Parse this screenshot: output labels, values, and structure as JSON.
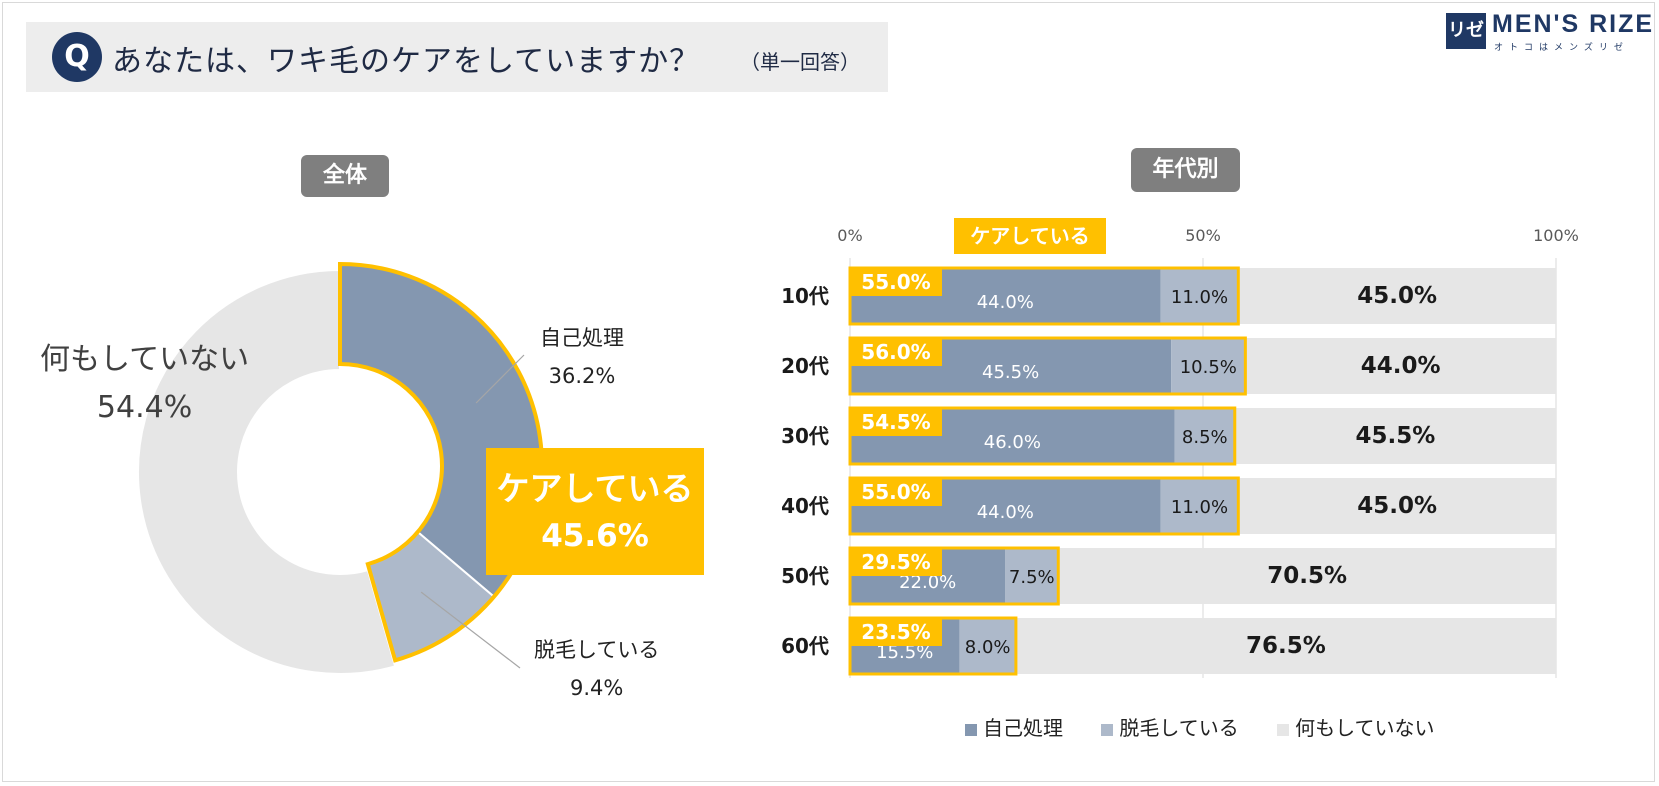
{
  "question": {
    "badge": "Q",
    "text": "あなたは、ワキ毛のケアをしていますか？",
    "note": "（単一回答）"
  },
  "brand": {
    "mark": "リゼ",
    "name": "MEN'S RIZE",
    "tagline": "オトコはメンズリゼ"
  },
  "colors": {
    "self": "#8497b0",
    "removal": "#adb9ca",
    "nothing": "#e6e6e6",
    "accent": "#ffc000",
    "navy": "#1f3864"
  },
  "overall": {
    "heading": "全体",
    "total_label": "ケアしている",
    "total_value": "45.6%"
  },
  "by_age": {
    "heading": "年代別",
    "care_label": "ケアしている"
  },
  "chart_data": [
    {
      "type": "pie",
      "title": "全体",
      "slices": [
        {
          "label": "自己処理",
          "value": 36.2,
          "text": "36.2%"
        },
        {
          "label": "脱毛している",
          "value": 9.4,
          "text": "9.4%"
        },
        {
          "label": "何もしていない",
          "value": 54.4,
          "text": "54.4%"
        }
      ]
    },
    {
      "type": "bar",
      "orientation": "horizontal",
      "stacked": true,
      "title": "年代別",
      "xlim": [
        0,
        100
      ],
      "ticks": [
        "0%",
        "50%",
        "100%"
      ],
      "categories": [
        "10代",
        "20代",
        "30代",
        "40代",
        "50代",
        "60代"
      ],
      "care_totals": [
        "55.0%",
        "56.0%",
        "54.5%",
        "55.0%",
        "29.5%",
        "23.5%"
      ],
      "series": [
        {
          "name": "自己処理",
          "values": [
            44.0,
            45.5,
            46.0,
            44.0,
            22.0,
            15.5
          ],
          "labels": [
            "44.0%",
            "45.5%",
            "46.0%",
            "44.0%",
            "22.0%",
            "15.5%"
          ]
        },
        {
          "name": "脱毛している",
          "values": [
            11.0,
            10.5,
            8.5,
            11.0,
            7.5,
            8.0
          ],
          "labels": [
            "11.0%",
            "10.5%",
            "8.5%",
            "11.0%",
            "7.5%",
            "8.0%"
          ]
        },
        {
          "name": "何もしていない",
          "values": [
            45.0,
            44.0,
            45.5,
            45.0,
            70.5,
            76.5
          ],
          "labels": [
            "45.0%",
            "44.0%",
            "45.5%",
            "45.0%",
            "70.5%",
            "76.5%"
          ]
        }
      ],
      "legend": "bottom"
    }
  ]
}
